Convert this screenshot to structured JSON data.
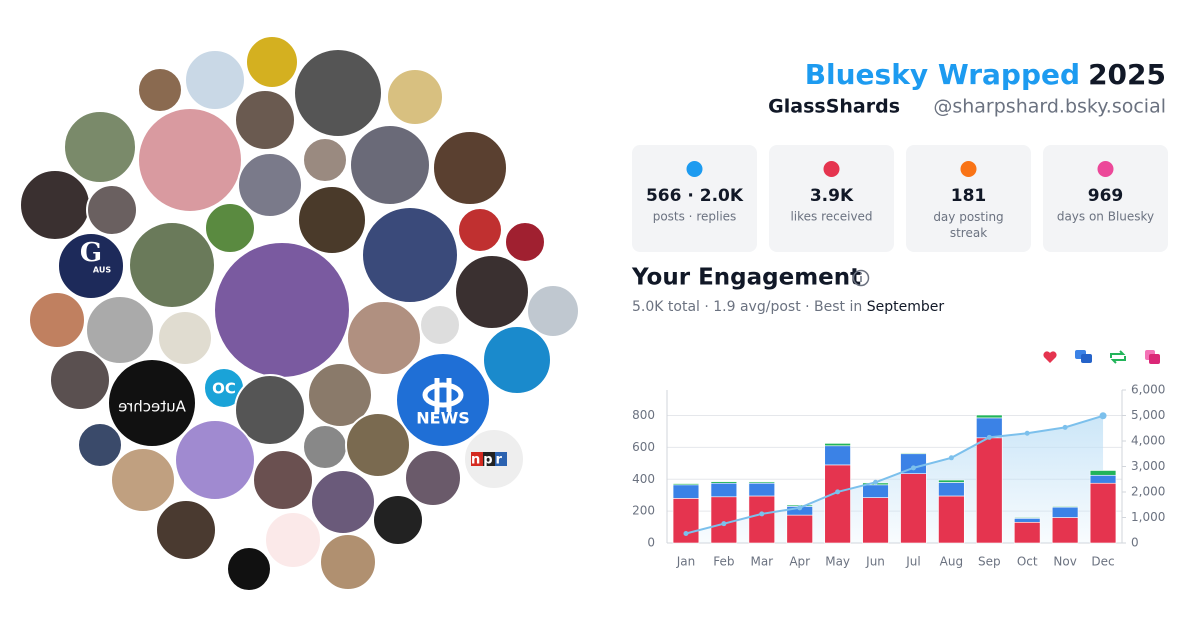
{
  "header": {
    "title_main": "Bluesky Wrapped",
    "title_year": "2025",
    "display_name": "GlassShards",
    "handle": "@sharpshard.bsky.social"
  },
  "stats": [
    {
      "value": "566 · 2.0K",
      "label": "posts · replies"
    },
    {
      "value": "3.9K",
      "label": "likes received"
    },
    {
      "value": "181",
      "label": "day posting streak"
    },
    {
      "value": "969",
      "label": "days on Bluesky"
    }
  ],
  "engagement": {
    "title": "Your Engagement",
    "summary": "5.0K total · 1.9 avg/post ·",
    "best_label": "Best in",
    "best_month": "September"
  },
  "avatar_labels": {
    "guardian_letter": "G",
    "guardian_region": "AUS",
    "oc": "OC",
    "autechre": "Autechre",
    "abc": "NEWS",
    "npr": "npr"
  },
  "chart_data": {
    "type": "bar",
    "categories": [
      "Jan",
      "Feb",
      "Mar",
      "Apr",
      "May",
      "Jun",
      "Jul",
      "Aug",
      "Sep",
      "Oct",
      "Nov",
      "Dec"
    ],
    "series": [
      {
        "color": "#e5344f",
        "values": [
          280,
          290,
          295,
          175,
          490,
          285,
          435,
          295,
          660,
          130,
          160,
          375
        ]
      },
      {
        "color": "#3b82e6",
        "values": [
          85,
          85,
          80,
          55,
          120,
          80,
          125,
          85,
          125,
          25,
          65,
          50
        ]
      },
      {
        "color": "#22b45a",
        "values": [
          8,
          10,
          8,
          8,
          15,
          12,
          5,
          15,
          18,
          5,
          5,
          30
        ]
      },
      {
        "type": "line",
        "axis": "y2",
        "color": "#7cc0ec",
        "values": [
          373,
          758,
          1141,
          1379,
          2004,
          2381,
          2946,
          3341,
          4144,
          4304,
          4534,
          4989
        ]
      }
    ],
    "ylim": [
      0,
      960
    ],
    "yticks": [
      0,
      200,
      400,
      600,
      800
    ],
    "y2lim": [
      0,
      6000
    ],
    "y2ticks": [
      0,
      {
        "value": 1000,
        "label": "1,000"
      },
      {
        "value": 2000,
        "label": "2,000"
      },
      {
        "value": 3000,
        "label": "3,000"
      },
      {
        "value": 4000,
        "label": "4,000"
      },
      {
        "value": 5000,
        "label": "5,000"
      },
      {
        "value": 6000,
        "label": "6,000"
      }
    ],
    "grid": true
  }
}
